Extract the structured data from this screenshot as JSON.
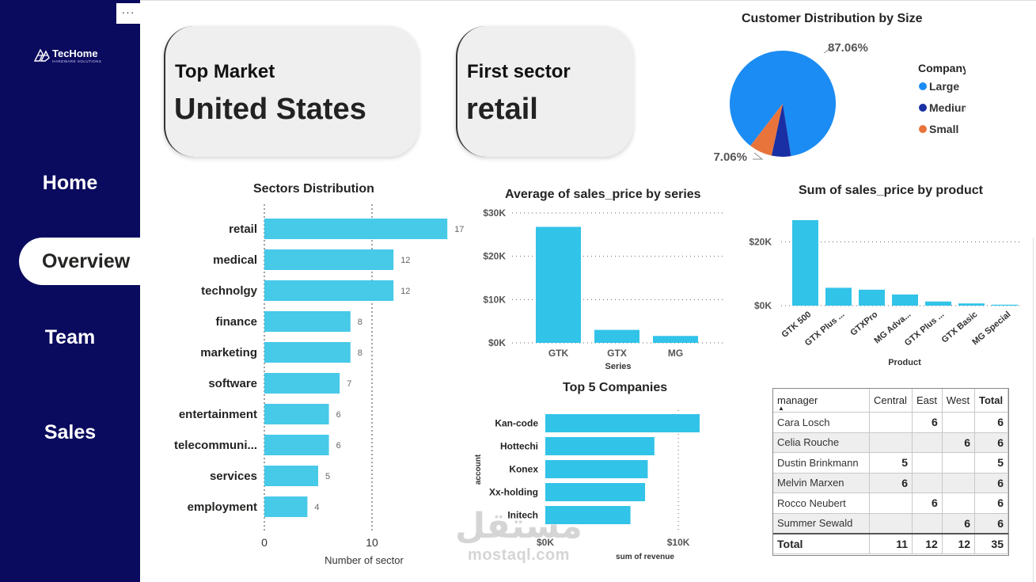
{
  "sidebar": {
    "more_label": "···",
    "logo": {
      "name": "TecHome",
      "tagline": "HARDWARE SOLUTIONS"
    },
    "nav": [
      "Home",
      "Overview",
      "Team",
      "Sales"
    ],
    "active": "Overview",
    "color": "#0a0a5e"
  },
  "kpis": {
    "top_market": {
      "label": "Top Market",
      "value": "United States"
    },
    "first_sector": {
      "label": "First sector",
      "value": "retail"
    }
  },
  "colors": {
    "bar": "#47c9e8",
    "bar_alt": "#32c3e8",
    "large": "#1b8cf3",
    "medium": "#1a2fa3",
    "small": "#e8743b"
  },
  "chart_data": [
    {
      "id": "sectors",
      "type": "bar",
      "orientation": "horizontal",
      "title": "Sectors Distribution",
      "categories": [
        "retail",
        "medical",
        "technolgy",
        "finance",
        "marketing",
        "software",
        "entertainment",
        "telecommuni...",
        "services",
        "employment"
      ],
      "values": [
        17,
        12,
        12,
        8,
        8,
        7,
        6,
        6,
        5,
        4
      ],
      "xlabel": "Number of sector",
      "xticks": [
        0,
        10
      ],
      "xlim": [
        0,
        17
      ]
    },
    {
      "id": "avg_series",
      "type": "bar",
      "title": "Average of sales_price by series",
      "categories": [
        "GTK",
        "GTX",
        "MG"
      ],
      "values": [
        26800,
        3000,
        1600
      ],
      "xlabel": "Series",
      "yticks": [
        0,
        10000,
        20000,
        30000
      ],
      "ytick_labels": [
        "$0K",
        "$10K",
        "$20K",
        "$30K"
      ],
      "ylim": [
        0,
        30000
      ]
    },
    {
      "id": "sum_product",
      "type": "bar",
      "title": "Sum of sales_price by product",
      "categories": [
        "GTK 500",
        "GTX Plus ...",
        "GTXPro",
        "MG Adva...",
        "GTX Plus ...",
        "GTX Basic",
        "MG Special"
      ],
      "values": [
        26800,
        5600,
        5000,
        3500,
        1300,
        700,
        300
      ],
      "xlabel": "Product",
      "yticks": [
        0,
        20000
      ],
      "ytick_labels": [
        "$0K",
        "$20K"
      ],
      "ylim": [
        0,
        30000
      ]
    },
    {
      "id": "top5",
      "type": "bar",
      "orientation": "horizontal",
      "title": "Top 5 Companies",
      "categories": [
        "Kan-code",
        "Hottechi",
        "Konex",
        "Xx-holding",
        "Initech"
      ],
      "values": [
        11600,
        8200,
        7700,
        7500,
        6400
      ],
      "ylabel": "account",
      "xlabel": "sum of revenue",
      "xticks": [
        0,
        10000
      ],
      "xtick_labels": [
        "$0K",
        "$10K"
      ],
      "xlim": [
        0,
        12000
      ]
    },
    {
      "id": "size_pie",
      "type": "pie",
      "title": "Customer Distribution by Size",
      "legend_title": "Company Size",
      "labels": [
        "Large",
        "Medium",
        "Small"
      ],
      "values": [
        87.06,
        5.88,
        7.06
      ],
      "data_labels": [
        "87.06%",
        "",
        "7.06%"
      ],
      "legend_position": "right"
    }
  ],
  "table": {
    "columns": [
      "manager",
      "Central",
      "East",
      "West",
      "Total"
    ],
    "rows": [
      [
        "Cara Losch",
        "",
        "6",
        "",
        "6"
      ],
      [
        "Celia Rouche",
        "",
        "",
        "6",
        "6"
      ],
      [
        "Dustin Brinkmann",
        "5",
        "",
        "",
        "5"
      ],
      [
        "Melvin Marxen",
        "6",
        "",
        "",
        "6"
      ],
      [
        "Rocco Neubert",
        "",
        "6",
        "",
        "6"
      ],
      [
        "Summer Sewald",
        "",
        "",
        "6",
        "6"
      ]
    ],
    "total": [
      "Total",
      "11",
      "12",
      "12",
      "35"
    ],
    "sort_indicator": "▲"
  },
  "watermark": {
    "arabic": "مستقل",
    "latin": "mostaql.com"
  }
}
